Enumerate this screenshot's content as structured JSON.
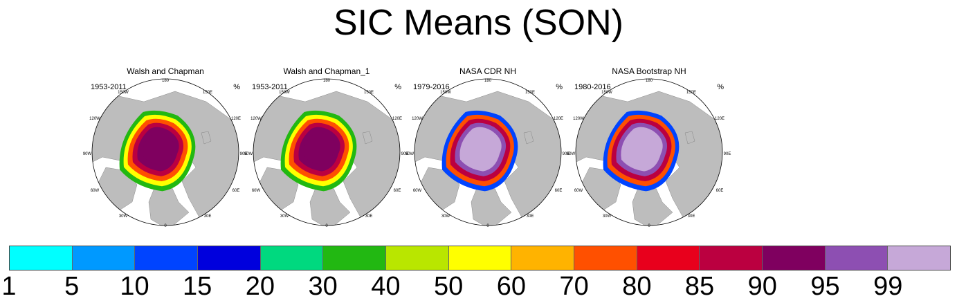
{
  "title": "SIC Means (SON)",
  "panels": [
    {
      "title": "Walsh and Chapman",
      "period": "1953-2011",
      "unit": "%"
    },
    {
      "title": "Walsh and Chapman_1",
      "period": "1953-2011",
      "unit": "%"
    },
    {
      "title": "NASA CDR NH",
      "period": "1979-2016",
      "unit": "%"
    },
    {
      "title": "NASA Bootstrap NH",
      "period": "1980-2016",
      "unit": "%"
    }
  ],
  "lon_labels": {
    "top": "180",
    "tl": "150W",
    "tr": "150E",
    "ul": "120W",
    "ur": "120E",
    "left": "90W",
    "right": "90E",
    "ll": "60W",
    "lr": "60E",
    "bl": "30W",
    "br": "30E",
    "bottom": "0"
  },
  "colorbar": {
    "colors": [
      "#00ffff",
      "#0099ff",
      "#0044ff",
      "#0000dd",
      "#00d97f",
      "#22b812",
      "#b9e600",
      "#ffff00",
      "#ffb300",
      "#ff5000",
      "#e8001c",
      "#bb0040",
      "#7f005f",
      "#8d4fb2",
      "#c6a8d8"
    ],
    "ticks": [
      "1",
      "5",
      "10",
      "15",
      "20",
      "30",
      "40",
      "50",
      "60",
      "70",
      "80",
      "85",
      "90",
      "95",
      "99"
    ]
  },
  "ice_palettes": {
    "wc": [
      "#7f005f",
      "#bb0040",
      "#ff5000",
      "#ffff00",
      "#22b812"
    ],
    "cdr": [
      "#c6a8d8",
      "#8d4fb2",
      "#bb0040",
      "#ff5000",
      "#0044ff"
    ]
  }
}
